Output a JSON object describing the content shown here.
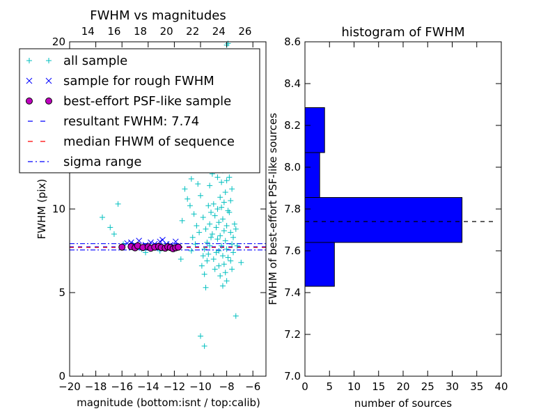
{
  "chart_data": [
    {
      "type": "scatter",
      "title": "FWHM vs magnitudes",
      "xlabel": "magnitude (bottom:isnt / top:calib)",
      "ylabel": "FWHM (pix)",
      "xlim": [
        -20,
        -5
      ],
      "ylim": [
        0,
        20
      ],
      "x_ticks": [
        "−20",
        "−18",
        "−16",
        "−14",
        "−12",
        "−10",
        "−8",
        "−6"
      ],
      "y_ticks": [
        "0",
        "5",
        "10"
      ],
      "top_ticks": [
        "14",
        "16",
        "18",
        "20",
        "22",
        "24",
        "26"
      ],
      "top_y_tick": "20",
      "grid": false,
      "legend_placement": "top-left",
      "legend": [
        {
          "label": "all sample",
          "marker": "plus",
          "color": "#00bfbf"
        },
        {
          "label": "sample for rough FWHM",
          "marker": "x",
          "color": "#0000ff"
        },
        {
          "label": "best-effort PSF-like sample",
          "marker": "circle",
          "color": "#bf00bf"
        },
        {
          "label": "resultant FWHM: 7.74",
          "marker": "dashed",
          "color": "#0000ff"
        },
        {
          "label": "median FHWM of sequence",
          "marker": "dashed",
          "color": "#ff0000"
        },
        {
          "label": "sigma range",
          "marker": "dashdot",
          "color": "#0000ff"
        }
      ],
      "resultant_fwhm": 7.74,
      "median_fwhm_sequence": 7.7,
      "sigma_range": [
        7.55,
        7.93
      ],
      "series": [
        {
          "name": "all sample",
          "points": [
            [
              -17.5,
              9.5
            ],
            [
              -16.9,
              8.9
            ],
            [
              -16.6,
              8.5
            ],
            [
              -16.3,
              10.3
            ],
            [
              -15.9,
              7.9
            ],
            [
              -14.2,
              7.4
            ],
            [
              -13.1,
              7.5
            ],
            [
              -11.2,
              11.2
            ],
            [
              -11.0,
              10.6
            ],
            [
              -10.8,
              10.2
            ],
            [
              -10.9,
              12.4
            ],
            [
              -10.7,
              11.8
            ],
            [
              -11.4,
              9.3
            ],
            [
              -11.5,
              7.0
            ],
            [
              -10.5,
              9.7
            ],
            [
              -10.3,
              9.0
            ],
            [
              -10.1,
              8.6
            ],
            [
              -10.6,
              8.3
            ],
            [
              -10.2,
              11.5
            ],
            [
              -10.0,
              10.8
            ],
            [
              -9.8,
              9.5
            ],
            [
              -9.6,
              8.8
            ],
            [
              -9.5,
              8.0
            ],
            [
              -9.7,
              7.6
            ],
            [
              -9.4,
              10.2
            ],
            [
              -9.3,
              9.1
            ],
            [
              -9.2,
              8.3
            ],
            [
              -9.4,
              7.3
            ],
            [
              -9.9,
              6.6
            ],
            [
              -9.7,
              6.1
            ],
            [
              -9.6,
              5.3
            ],
            [
              -10.0,
              2.4
            ],
            [
              -9.7,
              1.8
            ],
            [
              -9.3,
              11.4
            ],
            [
              -9.1,
              12.1
            ],
            [
              -9.0,
              10.3
            ],
            [
              -8.9,
              9.6
            ],
            [
              -8.8,
              8.9
            ],
            [
              -8.7,
              8.2
            ],
            [
              -8.6,
              7.5
            ],
            [
              -9.0,
              7.0
            ],
            [
              -8.9,
              6.4
            ],
            [
              -8.5,
              10.7
            ],
            [
              -8.4,
              11.6
            ],
            [
              -8.3,
              12.3
            ],
            [
              -8.5,
              13.0
            ],
            [
              -8.2,
              13.6
            ],
            [
              -8.4,
              14.2
            ],
            [
              -8.1,
              14.9
            ],
            [
              -8.3,
              15.4
            ],
            [
              -8.0,
              16.0
            ],
            [
              -8.2,
              16.8
            ],
            [
              -7.9,
              17.5
            ],
            [
              -8.1,
              18.3
            ],
            [
              -7.8,
              19.4
            ],
            [
              -8.0,
              19.8
            ],
            [
              -7.9,
              19.9
            ],
            [
              -8.6,
              12.8
            ],
            [
              -8.7,
              11.9
            ],
            [
              -8.8,
              13.5
            ],
            [
              -8.9,
              12.6
            ],
            [
              -8.4,
              10.1
            ],
            [
              -8.3,
              9.4
            ],
            [
              -8.2,
              8.7
            ],
            [
              -8.1,
              8.1
            ],
            [
              -8.0,
              7.6
            ],
            [
              -7.9,
              7.1
            ],
            [
              -8.2,
              6.7
            ],
            [
              -8.1,
              6.2
            ],
            [
              -8.0,
              5.7
            ],
            [
              -8.3,
              5.4
            ],
            [
              -7.8,
              9.8
            ],
            [
              -7.7,
              10.5
            ],
            [
              -7.6,
              11.2
            ],
            [
              -7.8,
              11.9
            ],
            [
              -7.7,
              12.7
            ],
            [
              -7.6,
              13.4
            ],
            [
              -7.8,
              14.1
            ],
            [
              -7.7,
              8.6
            ],
            [
              -7.6,
              7.9
            ],
            [
              -7.5,
              7.4
            ],
            [
              -7.7,
              6.9
            ],
            [
              -7.6,
              6.4
            ],
            [
              -7.5,
              8.3
            ],
            [
              -7.4,
              9.1
            ],
            [
              -8.5,
              8.4
            ],
            [
              -8.6,
              9.2
            ],
            [
              -8.7,
              10.0
            ],
            [
              -8.4,
              7.8
            ],
            [
              -8.3,
              7.2
            ],
            [
              -8.2,
              10.4
            ],
            [
              -8.1,
              11.0
            ],
            [
              -8.0,
              11.7
            ],
            [
              -7.9,
              12.4
            ],
            [
              -8.0,
              9.0
            ],
            [
              -7.9,
              9.9
            ],
            [
              -8.1,
              12.9
            ],
            [
              -7.9,
              13.8
            ],
            [
              -8.0,
              14.6
            ],
            [
              -9.1,
              8.5
            ],
            [
              -9.2,
              9.8
            ],
            [
              -9.3,
              7.8
            ],
            [
              -9.5,
              6.9
            ],
            [
              -9.8,
              7.2
            ],
            [
              -10.4,
              7.9
            ],
            [
              -10.7,
              7.5
            ],
            [
              -7.3,
              3.6
            ],
            [
              -6.9,
              6.8
            ],
            [
              -7.2,
              7.8
            ],
            [
              -7.3,
              8.8
            ],
            [
              -8.8,
              7.4
            ],
            [
              -8.6,
              6.6
            ],
            [
              -8.5,
              6.0
            ],
            [
              -12.0,
              7.6
            ],
            [
              -12.5,
              7.9
            ],
            [
              -13.0,
              7.8
            ],
            [
              -14.5,
              7.6
            ],
            [
              -15.2,
              7.9
            ]
          ]
        },
        {
          "name": "sample for rough FWHM",
          "points": [
            [
              -15.6,
              7.95
            ],
            [
              -15.3,
              8.0
            ],
            [
              -15.0,
              7.85
            ],
            [
              -14.7,
              8.1
            ],
            [
              -14.2,
              7.85
            ],
            [
              -13.8,
              8.0
            ],
            [
              -13.5,
              7.9
            ],
            [
              -13.1,
              8.05
            ],
            [
              -12.9,
              8.15
            ],
            [
              -12.6,
              7.9
            ],
            [
              -12.3,
              7.85
            ],
            [
              -11.9,
              8.05
            ],
            [
              -11.7,
              7.8
            ],
            [
              -14.9,
              7.7
            ],
            [
              -12.0,
              7.75
            ]
          ]
        },
        {
          "name": "best-effort PSF-like sample",
          "points": [
            [
              -16.0,
              7.72
            ],
            [
              -15.3,
              7.75
            ],
            [
              -15.0,
              7.68
            ],
            [
              -14.8,
              7.8
            ],
            [
              -14.4,
              7.7
            ],
            [
              -14.0,
              7.74
            ],
            [
              -13.8,
              7.65
            ],
            [
              -13.5,
              7.72
            ],
            [
              -13.2,
              7.76
            ],
            [
              -13.0,
              7.7
            ],
            [
              -12.7,
              7.66
            ],
            [
              -12.5,
              7.74
            ],
            [
              -12.3,
              7.7
            ],
            [
              -12.1,
              7.62
            ],
            [
              -11.9,
              7.68
            ],
            [
              -11.7,
              7.72
            ]
          ]
        }
      ]
    },
    {
      "type": "bar",
      "orientation": "horizontal",
      "title": "histogram of FWHM",
      "xlabel": "number of sources",
      "ylabel": "FWHM of best-effort PSF-like sources",
      "xlim": [
        0,
        40
      ],
      "ylim": [
        7.0,
        8.6
      ],
      "x_ticks": [
        "0",
        "5",
        "10",
        "15",
        "20",
        "25",
        "30",
        "35",
        "40"
      ],
      "y_ticks": [
        "7.0",
        "7.2",
        "7.4",
        "7.6",
        "7.8",
        "8.0",
        "8.2",
        "8.4",
        "8.6"
      ],
      "bar_color": "#0000ff",
      "bins": [
        {
          "low": 7.43,
          "high": 7.64,
          "count": 6
        },
        {
          "low": 7.64,
          "high": 7.855,
          "count": 32
        },
        {
          "low": 7.855,
          "high": 8.07,
          "count": 3
        },
        {
          "low": 8.07,
          "high": 8.285,
          "count": 4
        }
      ],
      "resultant_fwhm": 7.74
    }
  ]
}
